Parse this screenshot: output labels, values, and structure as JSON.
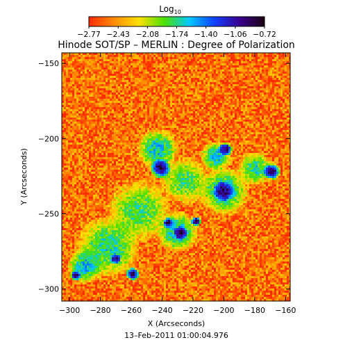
{
  "chart_data": {
    "type": "heatmap",
    "title": "Hinode SOT/SP – MERLIN : Degree of Polarization",
    "xlabel": "X (Arcseconds)",
    "ylabel": "Y (Arcseconds)",
    "footer": "13–Feb–2011 01:00:04.976",
    "colorbar": {
      "label": "Log",
      "label_sub": "10",
      "range": [
        -2.77,
        -0.72
      ],
      "ticks": [
        "−2.77",
        "−2.43",
        "−2.08",
        "−1.74",
        "−1.40",
        "−1.06",
        "−0.72"
      ],
      "colors": [
        "#ff2a00",
        "#ff8c00",
        "#ffe000",
        "#4ce000",
        "#00c8ff",
        "#1040ff",
        "#3a0090",
        "#1a0010"
      ]
    },
    "xlim": [
      -305,
      -157
    ],
    "ylim": [
      -308,
      -143
    ],
    "xticks": [
      -300,
      -280,
      -260,
      -240,
      -220,
      -200,
      -180,
      -160
    ],
    "yticks": [
      -150,
      -200,
      -250,
      -300
    ],
    "xtick_labels": [
      "−300",
      "−280",
      "−260",
      "−240",
      "−220",
      "−200",
      "−180",
      "−160"
    ],
    "ytick_labels": [
      "−150",
      "−200",
      "−250",
      "−300"
    ],
    "regions": [
      {
        "cx": -243,
        "cy": -207,
        "r": 12,
        "v": -1.6
      },
      {
        "cx": -205,
        "cy": -212,
        "r": 9,
        "v": -1.6
      },
      {
        "cx": -180,
        "cy": -220,
        "r": 10,
        "v": -1.7
      },
      {
        "cx": -225,
        "cy": -228,
        "r": 14,
        "v": -1.8
      },
      {
        "cx": -200,
        "cy": -235,
        "r": 14,
        "v": -1.6
      },
      {
        "cx": -255,
        "cy": -248,
        "r": 18,
        "v": -1.8
      },
      {
        "cx": -230,
        "cy": -262,
        "r": 12,
        "v": -1.6
      },
      {
        "cx": -275,
        "cy": -272,
        "r": 18,
        "v": -1.7
      },
      {
        "cx": -290,
        "cy": -285,
        "r": 10,
        "v": -1.6
      },
      {
        "cx": -241,
        "cy": -220,
        "r": 6,
        "v": -0.9
      },
      {
        "cx": -199,
        "cy": -207,
        "r": 4,
        "v": -0.85
      },
      {
        "cx": -169,
        "cy": -222,
        "r": 5,
        "v": -0.85
      },
      {
        "cx": -200,
        "cy": -235,
        "r": 6,
        "v": -0.9
      },
      {
        "cx": -218,
        "cy": -255,
        "r": 3,
        "v": -0.85
      },
      {
        "cx": -236,
        "cy": -256,
        "r": 3,
        "v": -0.85
      },
      {
        "cx": -228,
        "cy": -263,
        "r": 4,
        "v": -0.85
      },
      {
        "cx": -259,
        "cy": -290,
        "r": 4,
        "v": -0.85
      },
      {
        "cx": -296,
        "cy": -291,
        "r": 3,
        "v": -0.85
      },
      {
        "cx": -270,
        "cy": -280,
        "r": 3,
        "v": -0.9
      }
    ]
  }
}
